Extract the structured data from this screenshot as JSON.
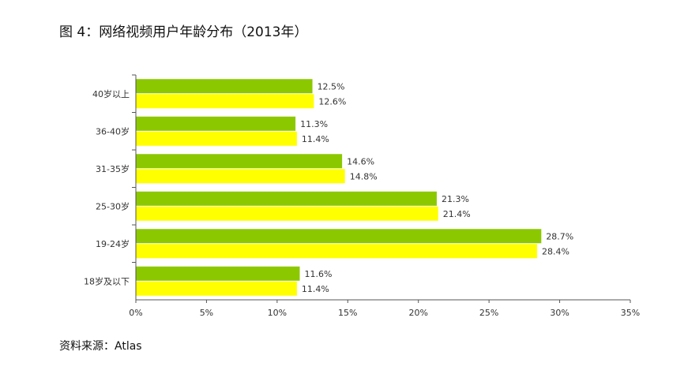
{
  "title": "图 4：网络视频用户年龄分布（2013年）",
  "source": "资料来源：Atlas",
  "chart_data": {
    "type": "bar",
    "orientation": "horizontal",
    "title": "图 4：网络视频用户年龄分布（2013年）",
    "categories": [
      "40岁以上",
      "36-40岁",
      "31-35岁",
      "25-30岁",
      "19-24岁",
      "18岁及以下"
    ],
    "series": [
      {
        "color": "#8cc800",
        "values": [
          12.5,
          11.3,
          14.6,
          21.3,
          28.7,
          11.6
        ]
      },
      {
        "color": "#ffff00",
        "values": [
          12.6,
          11.4,
          14.8,
          21.4,
          28.4,
          11.4
        ]
      }
    ],
    "value_suffix": "%",
    "xlim": [
      0,
      35
    ],
    "xticks": [
      0,
      5,
      10,
      15,
      20,
      25,
      30,
      35
    ],
    "xtick_labels": [
      "0%",
      "5%",
      "10%",
      "15%",
      "20%",
      "25%",
      "30%",
      "35%"
    ],
    "grid": false,
    "legend": "none"
  }
}
